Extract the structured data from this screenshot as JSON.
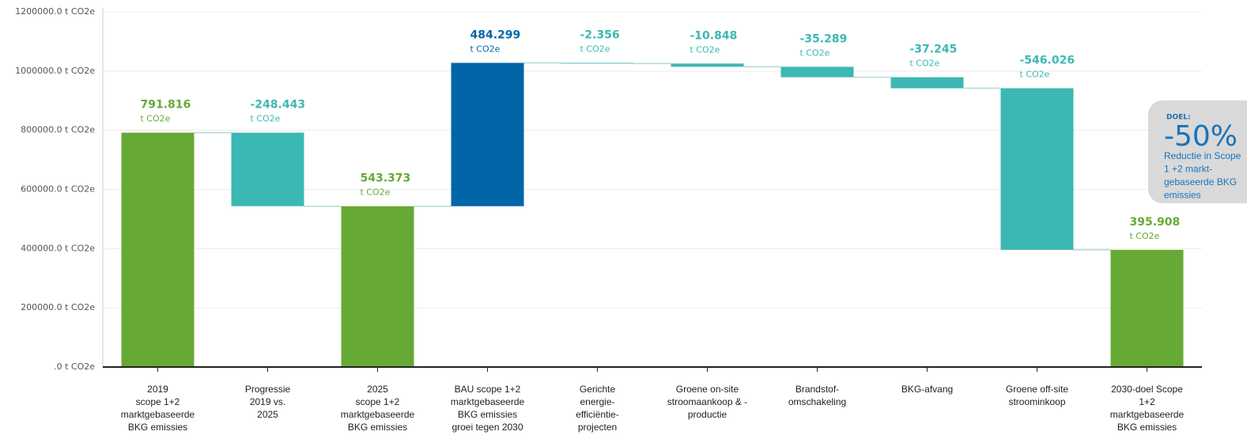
{
  "chart_data": {
    "type": "waterfall",
    "categories": [
      [
        "2019",
        "scope 1+2",
        "marktgebaseerde",
        "BKG emissies"
      ],
      [
        "Progressie",
        "2019 vs.",
        "2025"
      ],
      [
        "2025",
        "scope 1+2",
        "marktgebaseerde",
        "BKG emissies"
      ],
      [
        "BAU scope 1+2",
        "marktgebaseerde",
        "BKG emissies",
        "groei tegen 2030"
      ],
      [
        "Gerichte",
        "energie-",
        "efficiëntie-",
        "projecten"
      ],
      [
        "Groene on-site",
        "stroomaankoop & -",
        "productie"
      ],
      [
        "Brandstof-",
        "omschakeling"
      ],
      [
        "BKG-afvang"
      ],
      [
        "Groene off-site",
        "stroominkoop"
      ],
      [
        "2030-doel Scope",
        "1+2",
        "marktgebaseerde",
        "BKG emissies"
      ]
    ],
    "values": [
      791816,
      -248443,
      543373,
      484299,
      -2356,
      -10848,
      -35289,
      -37245,
      -546026,
      395908
    ],
    "value_labels": [
      "791.816",
      "-248.443",
      "543.373",
      "484.299",
      "-2.356",
      "-10.848",
      "-35.289",
      "-37.245",
      "-546.026",
      "395.908"
    ],
    "value_unit": "t CO2e",
    "is_total": [
      true,
      false,
      true,
      false,
      false,
      false,
      false,
      false,
      false,
      true
    ],
    "colors": {
      "total": "#67a935",
      "decrease": "#3bb8b3",
      "increase": "#0066a8"
    },
    "ylim": [
      0,
      1200000
    ],
    "yticks": [
      {
        "value": 0,
        "label": ".0 t CO2e"
      },
      {
        "value": 200000,
        "label": "200000.0 t CO2e"
      },
      {
        "value": 400000,
        "label": "400000.0 t CO2e"
      },
      {
        "value": 600000,
        "label": "600000.0 t CO2e"
      },
      {
        "value": 800000,
        "label": "800000.0 t CO2e"
      },
      {
        "value": 1000000,
        "label": "1000000.0 t CO2e"
      },
      {
        "value": 1200000,
        "label": "1200000.0 t CO2e"
      }
    ],
    "grid": true,
    "goal": {
      "label": "DOEL:",
      "headline": "-50%",
      "text": [
        "Reductie in Scope",
        "1 +2 markt-",
        "gebaseerde BKG",
        "emissies"
      ]
    }
  }
}
